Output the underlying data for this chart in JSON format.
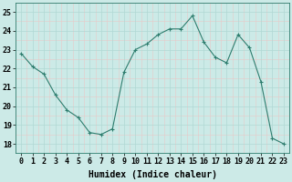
{
  "x": [
    0,
    1,
    2,
    3,
    4,
    5,
    6,
    7,
    8,
    9,
    10,
    11,
    12,
    13,
    14,
    15,
    16,
    17,
    18,
    19,
    20,
    21,
    22,
    23
  ],
  "y": [
    22.8,
    22.1,
    21.7,
    20.6,
    19.8,
    19.4,
    18.6,
    18.5,
    18.8,
    21.8,
    23.0,
    23.3,
    23.8,
    24.1,
    24.1,
    24.8,
    23.4,
    22.6,
    22.3,
    23.8,
    23.1,
    21.3,
    18.3,
    18.0
  ],
  "line_color": "#2e7d6e",
  "marker": "+",
  "marker_size": 4,
  "bg_color": "#cceae7",
  "grid_major_color": "#b0d8d4",
  "grid_minor_color": "#d8efed",
  "xlabel": "Humidex (Indice chaleur)",
  "xlim": [
    -0.5,
    23.5
  ],
  "ylim": [
    17.5,
    25.5
  ],
  "yticks": [
    18,
    19,
    20,
    21,
    22,
    23,
    24,
    25
  ],
  "xticks": [
    0,
    1,
    2,
    3,
    4,
    5,
    6,
    7,
    8,
    9,
    10,
    11,
    12,
    13,
    14,
    15,
    16,
    17,
    18,
    19,
    20,
    21,
    22,
    23
  ],
  "xlabel_fontsize": 7,
  "tick_fontsize": 6
}
